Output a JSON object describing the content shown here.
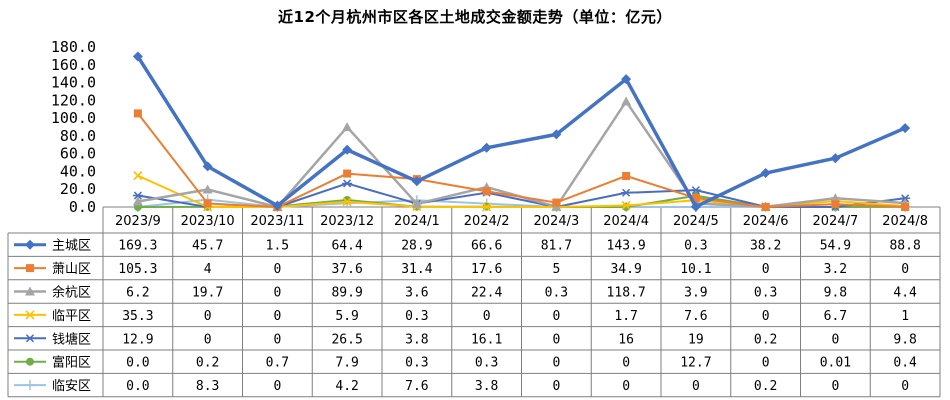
{
  "chart_data": {
    "type": "line",
    "title": "近12个月杭州市区各区土地成交金额走势（单位：亿元）",
    "categories": [
      "2023/9",
      "2023/10",
      "2023/11",
      "2023/12",
      "2024/1",
      "2024/2",
      "2024/3",
      "2024/4",
      "2024/5",
      "2024/6",
      "2024/7",
      "2024/8"
    ],
    "y_ticks": [
      "0.0",
      "20.0",
      "40.0",
      "60.0",
      "80.0",
      "100.0",
      "120.0",
      "140.0",
      "160.0",
      "180.0"
    ],
    "ylim": [
      0,
      180
    ],
    "grid": false,
    "legend": "data-table-left",
    "series": [
      {
        "name": "主城区",
        "color": "#4472C4",
        "marker": "diamond",
        "width": 3.5,
        "values": [
          169.3,
          45.7,
          1.5,
          64.4,
          28.9,
          66.6,
          81.7,
          143.9,
          0.3,
          38.2,
          54.9,
          88.8
        ],
        "labels": [
          "169.3",
          "45.7",
          "1.5",
          "64.4",
          "28.9",
          "66.6",
          "81.7",
          "143.9",
          "0.3",
          "38.2",
          "54.9",
          "88.8"
        ]
      },
      {
        "name": "萧山区",
        "color": "#ED7D31",
        "marker": "square",
        "width": 2,
        "values": [
          105.3,
          4,
          0,
          37.6,
          31.4,
          17.6,
          5,
          34.9,
          10.1,
          0,
          3.2,
          0
        ],
        "labels": [
          "105.3",
          "4",
          "0",
          "37.6",
          "31.4",
          "17.6",
          "5",
          "34.9",
          "10.1",
          "0",
          "3.2",
          "0"
        ]
      },
      {
        "name": "余杭区",
        "color": "#A5A5A5",
        "marker": "triangle",
        "width": 2.5,
        "values": [
          6.2,
          19.7,
          0,
          89.9,
          3.6,
          22.4,
          0.3,
          118.7,
          3.9,
          0.3,
          9.8,
          4.4
        ],
        "labels": [
          "6.2",
          "19.7",
          "0",
          "89.9",
          "3.6",
          "22.4",
          "0.3",
          "118.7",
          "3.9",
          "0.3",
          "9.8",
          "4.4"
        ]
      },
      {
        "name": "临平区",
        "color": "#FFC000",
        "marker": "x",
        "width": 2,
        "values": [
          35.3,
          0,
          0,
          5.9,
          0.3,
          0,
          0,
          1.7,
          7.6,
          0,
          6.7,
          1
        ],
        "labels": [
          "35.3",
          "0",
          "0",
          "5.9",
          "0.3",
          "0",
          "0",
          "1.7",
          "7.6",
          "0",
          "6.7",
          "1"
        ]
      },
      {
        "name": "钱塘区",
        "color": "#4A6DC4",
        "marker": "star",
        "width": 2,
        "values": [
          12.9,
          0,
          0,
          26.5,
          3.8,
          16.1,
          0,
          16,
          19,
          0.2,
          0,
          9.8
        ],
        "labels": [
          "12.9",
          "0",
          "0",
          "26.5",
          "3.8",
          "16.1",
          "0",
          "16",
          "19",
          "0.2",
          "0",
          "9.8"
        ]
      },
      {
        "name": "富阳区",
        "color": "#70AD47",
        "marker": "circle",
        "width": 2,
        "values": [
          0,
          0.2,
          0.7,
          7.9,
          0.3,
          0.3,
          0,
          0,
          12.7,
          0,
          0.01,
          0.4
        ],
        "labels": [
          "0.0",
          "0.2",
          "0.7",
          "7.9",
          "0.3",
          "0.3",
          "0",
          "0",
          "12.7",
          "0",
          "0.01",
          "0.4"
        ]
      },
      {
        "name": "临安区",
        "color": "#9DC3E6",
        "marker": "plus",
        "width": 2,
        "values": [
          0,
          8.3,
          0,
          4.2,
          7.6,
          3.8,
          0,
          0,
          0,
          0.2,
          0,
          0
        ],
        "labels": [
          "0.0",
          "8.3",
          "0",
          "4.2",
          "7.6",
          "3.8",
          "0",
          "0",
          "0",
          "0.2",
          "0",
          "0"
        ]
      }
    ]
  }
}
